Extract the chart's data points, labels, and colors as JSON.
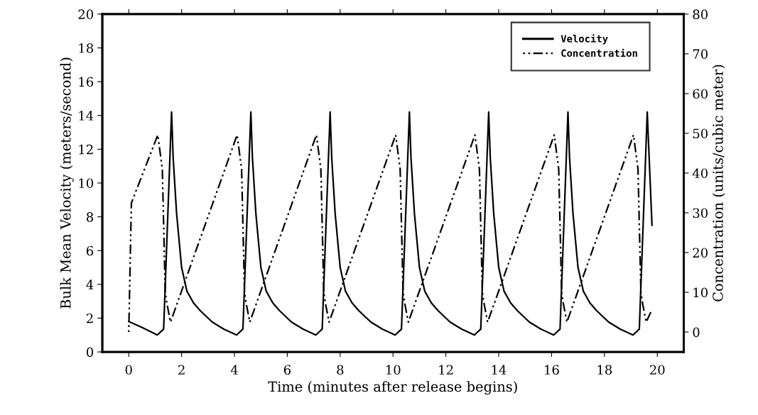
{
  "chart_data": {
    "type": "line",
    "xlabel": "Time (minutes after release begins)",
    "ylabel": "Bulk Mean Velocity (meters/second)",
    "y2label": "Concentration (units/cubic meter)",
    "xlim": [
      -1,
      21
    ],
    "xticks": [
      0,
      2,
      4,
      6,
      8,
      10,
      12,
      14,
      16,
      18,
      20
    ],
    "ylim": [
      0,
      20
    ],
    "yticks": [
      0,
      2,
      4,
      6,
      8,
      10,
      12,
      14,
      16,
      18,
      20
    ],
    "y2lim": [
      -5,
      80
    ],
    "y2ticks": [
      0,
      10,
      20,
      30,
      40,
      50,
      60,
      70,
      80
    ],
    "legend": "top right",
    "grid": false,
    "marker": "none",
    "series": [
      {
        "name": "Velocity",
        "color": "#000000",
        "line_style": "solid",
        "axis": "y",
        "x": [
          0,
          0.5,
          1.08,
          1.32,
          1.62,
          1.68,
          1.81,
          2.0,
          2.2,
          2.45,
          2.7,
          3.16,
          3.6,
          4.08,
          4.32,
          4.62,
          4.68,
          4.81,
          5.0,
          5.2,
          5.45,
          5.7,
          6.16,
          6.6,
          7.08,
          7.32,
          7.62,
          7.68,
          7.81,
          8.0,
          8.2,
          8.45,
          8.7,
          9.16,
          9.6,
          10.08,
          10.32,
          10.62,
          10.68,
          10.81,
          11.0,
          11.2,
          11.45,
          11.7,
          12.16,
          12.6,
          13.08,
          13.32,
          13.62,
          13.68,
          13.81,
          14.0,
          14.2,
          14.45,
          14.7,
          15.16,
          15.6,
          16.08,
          16.32,
          16.62,
          16.68,
          16.81,
          17.0,
          17.2,
          17.45,
          17.7,
          18.16,
          18.6,
          19.08,
          19.32,
          19.62,
          19.8
        ],
        "values": [
          1.8,
          1.45,
          1.0,
          1.35,
          14.2,
          11.5,
          8.2,
          5.0,
          3.6,
          2.9,
          2.45,
          1.77,
          1.35,
          1.0,
          1.35,
          14.2,
          11.5,
          8.2,
          5.0,
          3.6,
          2.9,
          2.45,
          1.77,
          1.35,
          1.0,
          1.35,
          14.2,
          11.5,
          8.2,
          5.0,
          3.6,
          2.9,
          2.45,
          1.77,
          1.35,
          1.0,
          1.35,
          14.2,
          11.5,
          8.2,
          5.0,
          3.6,
          2.9,
          2.45,
          1.77,
          1.35,
          1.0,
          1.35,
          14.2,
          11.5,
          8.2,
          5.0,
          3.6,
          2.9,
          2.45,
          1.77,
          1.35,
          1.0,
          1.35,
          14.2,
          11.5,
          8.2,
          5.0,
          3.6,
          2.9,
          2.45,
          1.77,
          1.35,
          1.0,
          1.35,
          14.2,
          7.5
        ]
      },
      {
        "name": "Concentration",
        "color": "#000000",
        "line_style": "dashdot",
        "axis": "y2",
        "x": [
          0,
          0.1,
          1.1,
          1.27,
          1.38,
          1.45,
          1.58,
          4.1,
          4.27,
          4.38,
          4.45,
          4.58,
          7.1,
          7.27,
          7.38,
          7.45,
          7.58,
          10.1,
          10.27,
          10.38,
          10.45,
          10.58,
          13.1,
          13.27,
          13.38,
          13.45,
          13.58,
          16.1,
          16.27,
          16.38,
          16.45,
          16.58,
          19.1,
          19.27,
          19.38,
          19.45,
          19.58,
          19.8
        ],
        "values": [
          0,
          32.5,
          49.6,
          41,
          10,
          7,
          2.5,
          49.6,
          41,
          10,
          7,
          2.5,
          49.6,
          41,
          10,
          7,
          2.5,
          49.6,
          41,
          10,
          7,
          2.5,
          49.6,
          41,
          10,
          7,
          2.5,
          49.6,
          41,
          10,
          7,
          2.5,
          49.6,
          41,
          10,
          7,
          2.5,
          5.7
        ]
      }
    ]
  }
}
